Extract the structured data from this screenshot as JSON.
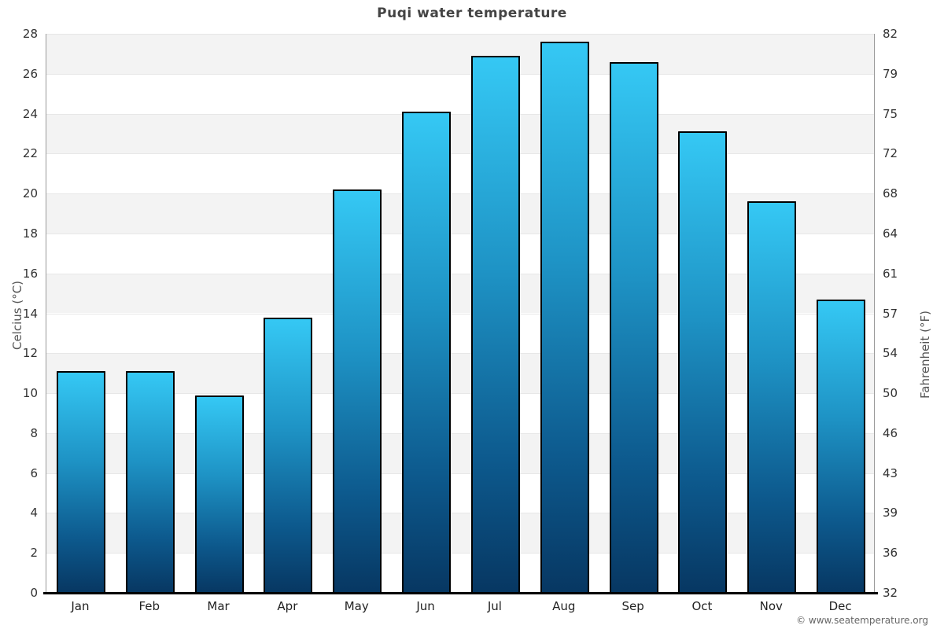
{
  "title": "Puqi water temperature",
  "footer": "© www.seatemperature.org",
  "chart_data": {
    "type": "bar",
    "title": "Puqi water temperature",
    "categories": [
      "Jan",
      "Feb",
      "Mar",
      "Apr",
      "May",
      "Jun",
      "Jul",
      "Aug",
      "Sep",
      "Oct",
      "Nov",
      "Dec"
    ],
    "values": [
      11.1,
      11.1,
      9.9,
      13.8,
      20.2,
      24.1,
      26.9,
      27.6,
      26.6,
      23.1,
      19.6,
      14.7
    ],
    "xlabel": "",
    "ylabel_left": "Celcius (°C)",
    "ylabel_right": "Fahrenheit (°F)",
    "ylim": [
      0,
      28
    ],
    "yticks_left": [
      0,
      2,
      4,
      6,
      8,
      10,
      12,
      14,
      16,
      18,
      20,
      22,
      24,
      26,
      28
    ],
    "yticks_right": [
      32,
      36,
      39,
      43,
      46,
      50,
      54,
      57,
      61,
      64,
      68,
      72,
      75,
      79,
      82
    ],
    "legend": "none",
    "grid": "alternating horizontal bands, light gray on white",
    "colors": {
      "bar_gradient_top": "#35c8f4",
      "bar_gradient_upper_mid": "#1e93c5",
      "bar_gradient_lower_mid": "#0d5a8e",
      "bar_gradient_bottom": "#073762",
      "bar_border": "#000000",
      "band_gray": "#f3f3f3",
      "axis_line": "#999999",
      "baseline": "#000000",
      "title_text": "#444444",
      "tick_text": "#333333",
      "footer_text": "#666666"
    }
  }
}
